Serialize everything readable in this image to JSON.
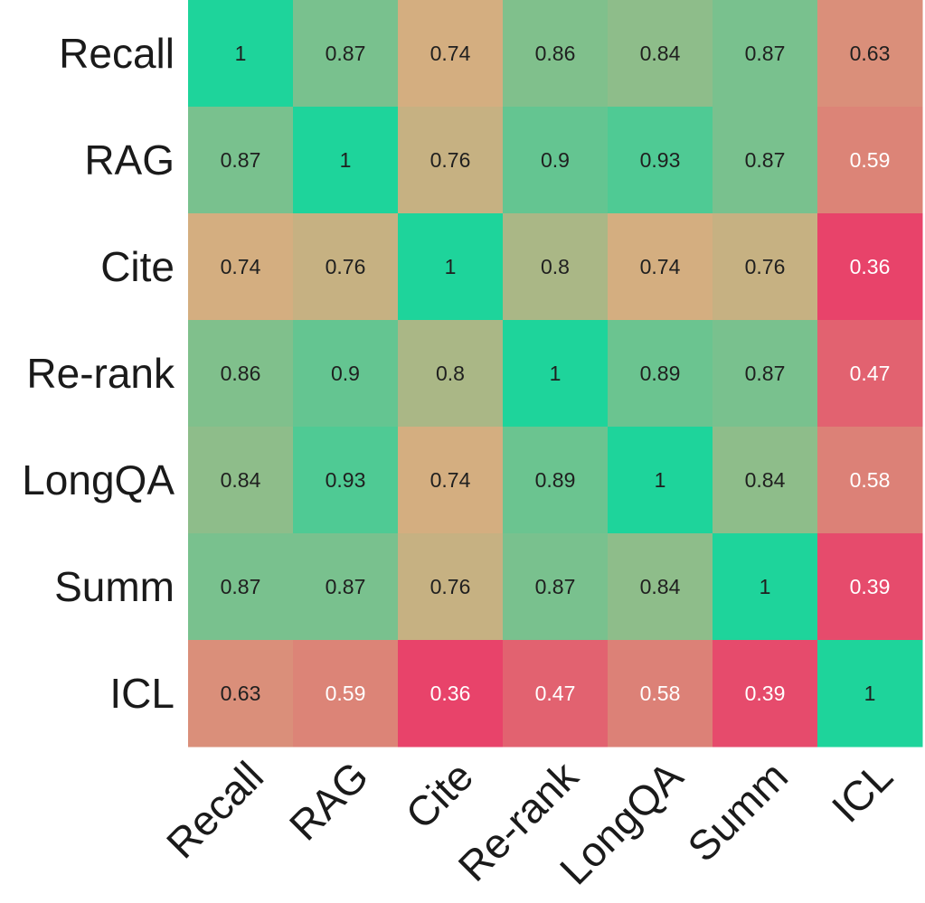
{
  "chart_data": {
    "type": "heatmap",
    "title": "",
    "xlabel": "",
    "ylabel": "",
    "rows": [
      "Recall",
      "RAG",
      "Cite",
      "Re-rank",
      "LongQA",
      "Summ",
      "ICL"
    ],
    "columns": [
      "Recall",
      "RAG",
      "Cite",
      "Re-rank",
      "LongQA",
      "Summ",
      "ICL"
    ],
    "values": [
      [
        1,
        0.87,
        0.74,
        0.86,
        0.84,
        0.87,
        0.63
      ],
      [
        0.87,
        1,
        0.76,
        0.9,
        0.93,
        0.87,
        0.59
      ],
      [
        0.74,
        0.76,
        1,
        0.8,
        0.74,
        0.76,
        0.36
      ],
      [
        0.86,
        0.9,
        0.8,
        1,
        0.89,
        0.87,
        0.47
      ],
      [
        0.84,
        0.93,
        0.74,
        0.89,
        1,
        0.84,
        0.58
      ],
      [
        0.87,
        0.87,
        0.76,
        0.87,
        0.84,
        1,
        0.39
      ],
      [
        0.63,
        0.59,
        0.36,
        0.47,
        0.58,
        0.39,
        1
      ]
    ],
    "colorscale": {
      "low": "#E8436A",
      "mid": "#D4AE80",
      "high": "#1ED49B"
    },
    "text_colors": {
      "dark": "#1f1f1f",
      "light": "#ffffff"
    },
    "colorbar": false,
    "grid": false
  }
}
